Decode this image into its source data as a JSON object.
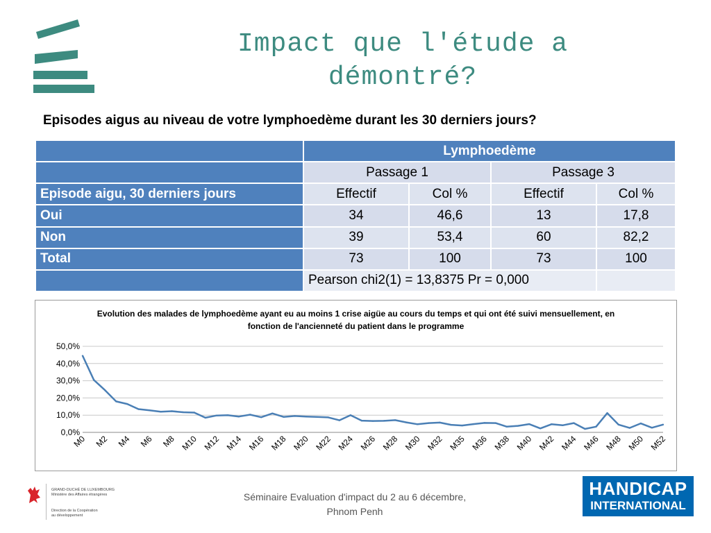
{
  "slide": {
    "title": "Impact que l'étude a démontré?",
    "question": "Episodes aigus au niveau de votre lymphoedème  durant les 30 derniers jours?",
    "footer": "Séminaire Evaluation d'impact du 2 au 6 décembre, Phnom Penh",
    "accent_color": "#3d8b80"
  },
  "table": {
    "group_header": "Lymphoedème",
    "passages": [
      "Passage 1",
      "Passage 3"
    ],
    "row_header": "Episode aigu, 30 derniers jours",
    "col_labels": [
      "Effectif",
      "Col %",
      "Effectif",
      "Col %"
    ],
    "rows": [
      {
        "label": "Oui",
        "values": [
          "34",
          "46,6",
          "13",
          "17,8"
        ]
      },
      {
        "label": "Non",
        "values": [
          "39",
          "53,4",
          "60",
          "82,2"
        ]
      },
      {
        "label": "Total",
        "values": [
          "73",
          "100",
          "73",
          "100"
        ]
      }
    ],
    "stat": "Pearson chi2(1) = 13,8375 Pr = 0,000"
  },
  "chart_data": {
    "type": "line",
    "title": "Evolution des malades de lymphoedème ayant eu au moins 1 crise aigüe au cours du temps et qui ont été suivi mensuellement, en fonction de l'ancienneté du patient dans le programme",
    "title_lines": [
      "Evolution des malades de lymphoedème ayant eu au moins 1 crise aigüe au cours du temps et qui ont été suivi mensuellement, en",
      "fonction de l'ancienneté du patient dans le programme"
    ],
    "ylim": [
      0,
      50
    ],
    "yticks": [
      "0,0%",
      "10,0%",
      "20,0%",
      "30,0%",
      "40,0%",
      "50,0%"
    ],
    "xtick_labels": [
      "M0",
      "M2",
      "M4",
      "M6",
      "M8",
      "M10",
      "M12",
      "M14",
      "M16",
      "M18",
      "M20",
      "M22",
      "M24",
      "M26",
      "M28",
      "M30",
      "M32",
      "M35",
      "M36",
      "M38",
      "M40",
      "M42",
      "M44",
      "M46",
      "M48",
      "M50",
      "M52"
    ],
    "values": [
      44.5,
      30.5,
      24.5,
      18.0,
      16.5,
      13.5,
      12.8,
      12.0,
      12.3,
      11.7,
      11.5,
      8.5,
      9.8,
      10.0,
      9.2,
      10.3,
      8.8,
      11.0,
      9.0,
      9.5,
      9.2,
      9.0,
      8.7,
      7.0,
      10.0,
      6.8,
      6.6,
      6.7,
      7.1,
      5.8,
      4.7,
      5.4,
      5.7,
      4.4,
      4.0,
      4.8,
      5.5,
      5.4,
      3.3,
      3.8,
      4.8,
      2.3,
      4.7,
      4.1,
      5.4,
      2.0,
      3.3,
      11.2,
      4.5,
      2.6,
      5.2,
      2.7,
      4.5
    ],
    "series_color": "#4a7fb5",
    "gridlines": true
  },
  "partner": {
    "gov_line1": "GRAND-DUCHÉ DE LUXEMBOURG",
    "gov_line2": "Ministère des Affaires étrangères",
    "gov_line3": "Direction de la Coopération",
    "gov_line4": "au développement",
    "ngo_line1": "HANDICAP",
    "ngo_line2": "INTERNATIONAL"
  }
}
